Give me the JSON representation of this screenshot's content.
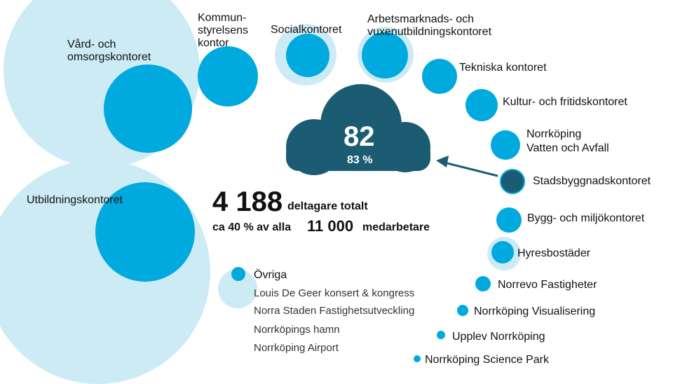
{
  "colors": {
    "light": "#cdebf5",
    "mid": "#00aadf",
    "dark": "#1b5c73",
    "arrow": "#1b5c73"
  },
  "departments": {
    "vard": "Vård- och omsorgskontoret",
    "kommunstyrelsen": "Kommun-\nstyrelsens\nkontor",
    "social": "Socialkontoret",
    "arbetsmarknad": "Arbetsmarknads- och\nvuxenutbildningskontoret",
    "tekniska": "Tekniska kontoret",
    "kultur": "Kultur- och fritidskontoret",
    "vatten": "Norrköping\nVatten och Avfall",
    "stadsbyggnad": "Stadsbyggnadskontoret",
    "bygg": "Bygg- och miljökontoret",
    "hyresbostader": "Hyresbostäder",
    "norrevo": "Norrevo Fastigheter",
    "visualisering": "Norrköping Visualisering",
    "upplev": "Upplev Norrköping",
    "science": "Norrköping Science Park",
    "utbildning": "Utbildningskontoret",
    "ovriga": "Övriga"
  },
  "ovriga_list": [
    "Louis De Geer konsert & kongress",
    "Norra Staden Fastighetsutveckling",
    "Norrköpings hamn",
    "Norrköping Airport"
  ],
  "cloud": {
    "value": "82",
    "percent": "83 %"
  },
  "totals": {
    "participants": "4 188",
    "participants_label": "deltagare totalt",
    "share_prefix": "ca 40 % av alla",
    "employees": "11 000",
    "employees_label": "medarbetare"
  }
}
